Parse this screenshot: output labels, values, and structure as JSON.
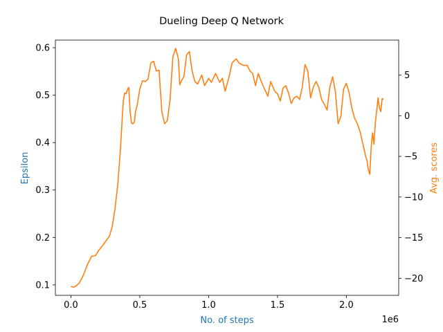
{
  "chart_data": {
    "type": "line",
    "title": "Dueling Deep Q Network",
    "xlabel": "No. of steps",
    "x_offset_text": "1e6",
    "ylabel_left": "Epsilon",
    "ylabel_right": "Avg. scores",
    "xlim": [
      -0.113,
      2.38
    ],
    "ylim_left": [
      0.078,
      0.616
    ],
    "ylim_right": [
      -22.1,
      9.3
    ],
    "x_ticks": [
      0.0,
      0.5,
      1.0,
      1.5,
      2.0
    ],
    "x_tick_labels": [
      "0.0",
      "0.5",
      "1.0",
      "1.5",
      "2.0"
    ],
    "left_ticks": [
      0.1,
      0.2,
      0.3,
      0.4,
      0.5,
      0.6
    ],
    "left_tick_labels": [
      "0.1",
      "0.2",
      "0.3",
      "0.4",
      "0.5",
      "0.6"
    ],
    "right_ticks": [
      -20,
      -15,
      -10,
      -5,
      0,
      5
    ],
    "right_tick_labels": [
      "−20",
      "−15",
      "−10",
      "−5",
      "0",
      "5"
    ],
    "grid": false,
    "colors": {
      "left_axis": "#1f77b4",
      "right_axis": "#ff7f0e",
      "series": "#ff7f0e"
    },
    "series": [
      {
        "axis": "right",
        "x": [
          0.0,
          0.02,
          0.04,
          0.06,
          0.08,
          0.1,
          0.12,
          0.15,
          0.18,
          0.2,
          0.23,
          0.25,
          0.28,
          0.3,
          0.32,
          0.34,
          0.36,
          0.37,
          0.38,
          0.39,
          0.4,
          0.41,
          0.42,
          0.43,
          0.44,
          0.45,
          0.46,
          0.47,
          0.48,
          0.5,
          0.52,
          0.54,
          0.56,
          0.58,
          0.6,
          0.62,
          0.64,
          0.66,
          0.68,
          0.7,
          0.72,
          0.74,
          0.76,
          0.78,
          0.79,
          0.8,
          0.82,
          0.84,
          0.86,
          0.88,
          0.9,
          0.92,
          0.95,
          0.97,
          1.0,
          1.02,
          1.05,
          1.08,
          1.1,
          1.12,
          1.15,
          1.17,
          1.2,
          1.22,
          1.25,
          1.28,
          1.3,
          1.32,
          1.34,
          1.36,
          1.38,
          1.4,
          1.43,
          1.45,
          1.48,
          1.5,
          1.52,
          1.54,
          1.56,
          1.58,
          1.6,
          1.62,
          1.64,
          1.66,
          1.68,
          1.7,
          1.72,
          1.74,
          1.76,
          1.78,
          1.8,
          1.82,
          1.84,
          1.86,
          1.88,
          1.9,
          1.92,
          1.94,
          1.96,
          1.98,
          2.0,
          2.02,
          2.04,
          2.06,
          2.08,
          2.1,
          2.12,
          2.14,
          2.15,
          2.16,
          2.17,
          2.18,
          2.19,
          2.2,
          2.21,
          2.22,
          2.23,
          2.24,
          2.25,
          2.26,
          2.27
        ],
        "y": [
          -21.0,
          -21.1,
          -20.9,
          -20.6,
          -20.0,
          -19.2,
          -18.3,
          -17.3,
          -17.2,
          -16.6,
          -16.0,
          -15.5,
          -14.8,
          -13.6,
          -11.5,
          -8.5,
          -4.0,
          -1.0,
          1.8,
          2.8,
          2.7,
          3.2,
          3.5,
          0.5,
          -0.9,
          -1.0,
          -0.8,
          0.6,
          1.2,
          3.3,
          4.3,
          4.2,
          4.5,
          6.5,
          6.7,
          5.5,
          5.6,
          0.5,
          -1.0,
          -0.6,
          2.0,
          7.2,
          8.3,
          7.0,
          3.8,
          4.2,
          4.8,
          7.5,
          7.9,
          5.5,
          4.2,
          3.9,
          5.0,
          3.7,
          4.6,
          4.1,
          5.2,
          4.1,
          4.6,
          3.0,
          4.9,
          6.5,
          7.0,
          6.5,
          6.2,
          6.2,
          5.5,
          5.2,
          3.7,
          5.2,
          4.3,
          3.5,
          2.4,
          4.2,
          3.0,
          2.7,
          1.8,
          3.4,
          3.7,
          2.8,
          1.5,
          2.2,
          2.4,
          2.0,
          3.5,
          6.3,
          5.5,
          2.2,
          3.5,
          4.2,
          3.5,
          2.0,
          1.4,
          0.7,
          3.5,
          4.8,
          3.0,
          -1.0,
          -0.1,
          3.3,
          4.0,
          2.8,
          0.9,
          -0.3,
          -1.0,
          -2.0,
          -3.5,
          -5.0,
          -5.5,
          -6.7,
          -7.2,
          -3.9,
          -2.1,
          -3.5,
          -0.9,
          0.6,
          2.2,
          1.0,
          0.5,
          2.1,
          2.0
        ]
      }
    ]
  }
}
